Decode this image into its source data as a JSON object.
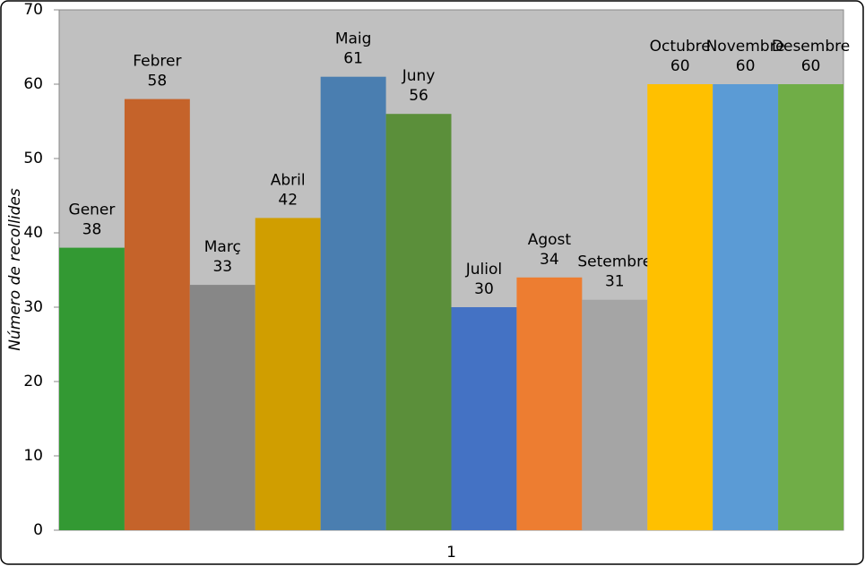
{
  "chart_data": {
    "type": "bar",
    "y_label": "Número de recollides",
    "categories": [
      "1"
    ],
    "series": [
      {
        "name": "Gener",
        "color": "#339933",
        "values": [
          38
        ]
      },
      {
        "name": "Febrer",
        "color": "#c5632a",
        "values": [
          58
        ]
      },
      {
        "name": "Març",
        "color": "#878787",
        "values": [
          33
        ]
      },
      {
        "name": "Abril",
        "color": "#d09e00",
        "values": [
          42
        ]
      },
      {
        "name": "Maig",
        "color": "#4a7eb0",
        "values": [
          61
        ]
      },
      {
        "name": "Juny",
        "color": "#5b8f3a",
        "values": [
          56
        ]
      },
      {
        "name": "Juliol",
        "color": "#4472c4",
        "values": [
          30
        ]
      },
      {
        "name": "Agost",
        "color": "#ed7d31",
        "values": [
          34
        ]
      },
      {
        "name": "Setembre",
        "color": "#a5a5a5",
        "values": [
          31
        ]
      },
      {
        "name": "Octubre",
        "color": "#ffc000",
        "values": [
          60
        ]
      },
      {
        "name": "Novembre",
        "color": "#5b9bd5",
        "values": [
          60
        ]
      },
      {
        "name": "Desembre",
        "color": "#70ad47",
        "values": [
          60
        ]
      }
    ],
    "ylim": [
      0,
      70
    ],
    "yticks": [
      0,
      10,
      20,
      30,
      40,
      50,
      60,
      70
    ],
    "grid": false,
    "plot_background": "#c0c0c0"
  }
}
